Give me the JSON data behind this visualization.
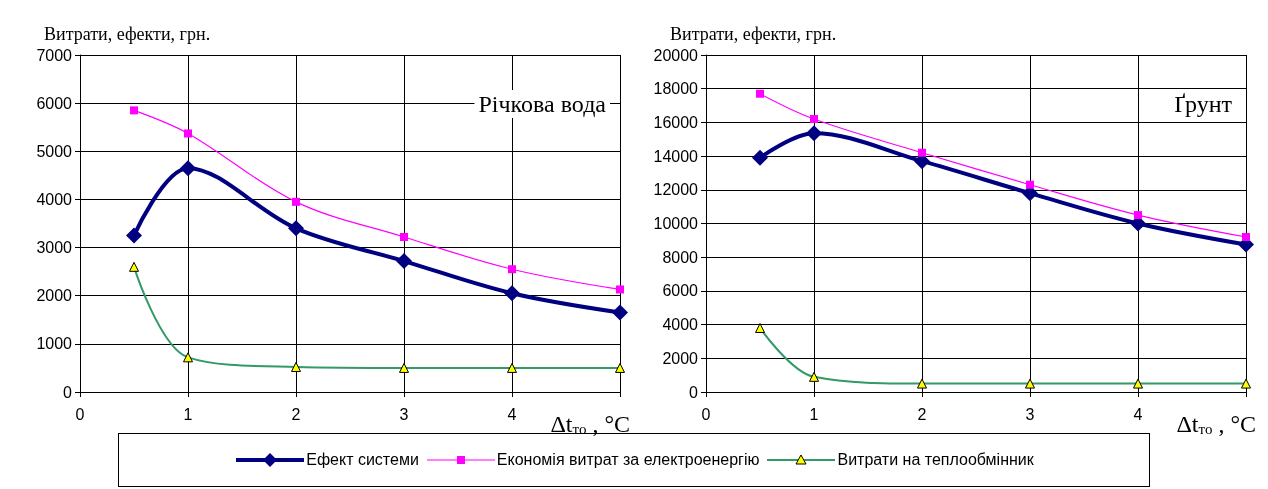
{
  "chart_data": [
    {
      "type": "line",
      "ylabel": "Витрати, ефекти, грн.",
      "xlabel": "Δt$_{то}$ , °C",
      "annotations": [
        "Річкова вода"
      ],
      "xlim": [
        0,
        5
      ],
      "xticks": [
        0,
        1,
        2,
        3,
        4,
        {
          "value": 5,
          "label": null
        }
      ],
      "ylim": [
        0,
        7000
      ],
      "yticks": [
        0,
        1000,
        2000,
        3000,
        4000,
        5000,
        6000,
        7000
      ],
      "grid": true,
      "legend": "bottom",
      "series": [
        {
          "name": "Ефект системи",
          "color": "#000080",
          "marker": "diamond",
          "x": [
            0.5,
            1,
            2,
            3,
            4,
            5
          ],
          "values": [
            3250,
            4650,
            3400,
            2720,
            2050,
            1650
          ]
        },
        {
          "name": "Економія витрат за електроенергію",
          "color": "#ff00ff",
          "marker": "square",
          "x": [
            0.5,
            1,
            2,
            3,
            4,
            5
          ],
          "values": [
            5850,
            5370,
            3950,
            3220,
            2550,
            2130
          ]
        },
        {
          "name": "Витрати на теплообмінник",
          "color": "#339966",
          "marker": "triangle",
          "x": [
            0.5,
            1,
            2,
            3,
            4,
            5
          ],
          "values": [
            2600,
            720,
            520,
            500,
            500,
            500
          ]
        }
      ]
    },
    {
      "type": "line",
      "ylabel": "Витрати, ефекти, грн.",
      "xlabel": "Δt$_{то}$ , °C",
      "annotations": [
        "Ґрунт"
      ],
      "xlim": [
        0,
        5
      ],
      "xticks": [
        0,
        1,
        2,
        3,
        4,
        {
          "value": 5,
          "label": null
        }
      ],
      "ylim": [
        0,
        20000
      ],
      "yticks": [
        0,
        2000,
        4000,
        6000,
        8000,
        10000,
        12000,
        14000,
        16000,
        18000,
        20000
      ],
      "grid": true,
      "legend": "bottom",
      "series": [
        {
          "name": "Ефект системи",
          "color": "#000080",
          "marker": "diamond",
          "x": [
            0.5,
            1,
            2,
            3,
            4,
            5
          ],
          "values": [
            13900,
            15350,
            13700,
            11800,
            10000,
            8750
          ]
        },
        {
          "name": "Економія витрат за електроенергію",
          "color": "#ff00ff",
          "marker": "square",
          "x": [
            0.5,
            1,
            2,
            3,
            4,
            5
          ],
          "values": [
            17700,
            16200,
            14200,
            12300,
            10500,
            9200
          ]
        },
        {
          "name": "Витрати на теплообмінник",
          "color": "#339966",
          "marker": "triangle",
          "x": [
            0.5,
            1,
            2,
            3,
            4,
            5
          ],
          "values": [
            3800,
            900,
            500,
            500,
            500,
            500
          ]
        }
      ]
    }
  ]
}
